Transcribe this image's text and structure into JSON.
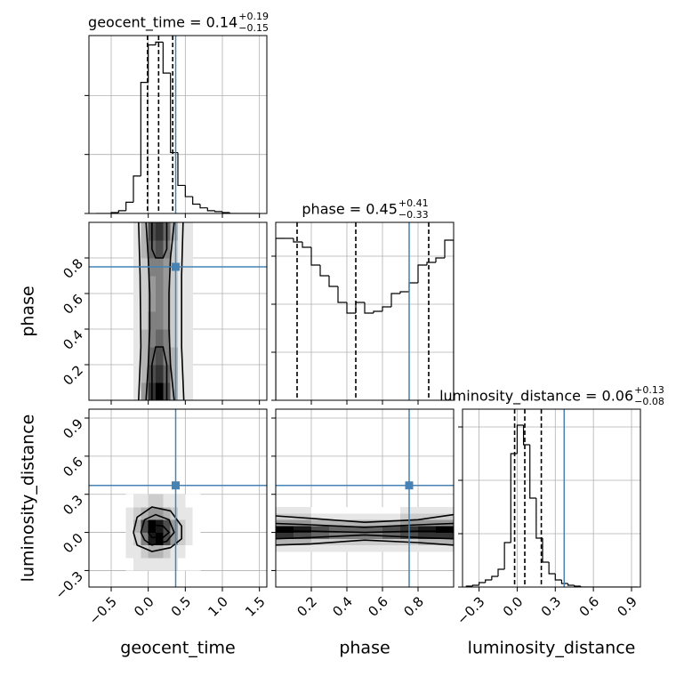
{
  "chart_data": {
    "type": "corner",
    "truth_color": "#4682b4",
    "hist_color": "#000000",
    "grid": true,
    "parameters": [
      {
        "name": "geocent_time",
        "lim": [
          -0.8,
          1.6
        ],
        "ticks": [
          {
            "value": -0.5,
            "label": "−0.5"
          },
          {
            "value": 0,
            "label": "0.0"
          },
          0.5,
          {
            "value": 1,
            "label": "1.0"
          },
          1.5
        ],
        "truth": 0.37,
        "title": {
          "label": "geocent_time = 0.14",
          "upper": "+0.19",
          "lower": "−0.15"
        },
        "quantiles": [
          -0.01,
          0.14,
          0.33
        ],
        "hist": {
          "bins": [
            -0.7,
            -0.6,
            -0.5,
            -0.4,
            -0.3,
            -0.2,
            -0.1,
            0,
            0.1,
            0.2,
            0.3,
            0.4,
            0.5,
            0.6,
            0.7,
            0.8,
            0.9,
            1.0,
            1.1,
            1.2,
            1.3,
            1.4,
            1.5
          ],
          "counts": [
            0,
            0,
            1,
            3,
            12,
            40,
            140,
            180,
            183,
            150,
            65,
            30,
            18,
            10,
            6,
            3,
            2,
            1,
            0,
            0,
            0,
            0
          ],
          "ylim": [
            0,
            190
          ],
          "yticks": [
            0,
            63,
            126
          ]
        }
      },
      {
        "name": "phase",
        "lim": [
          0,
          1
        ],
        "ticks": [
          0.2,
          0.4,
          0.6,
          0.8
        ],
        "truth": 0.75,
        "title": {
          "label": "phase = 0.45",
          "upper": "+0.41",
          "lower": "−0.33"
        },
        "quantiles": [
          0.12,
          0.45,
          0.86
        ],
        "hist": {
          "bins": [
            0,
            0.05,
            0.1,
            0.15,
            0.2,
            0.25,
            0.3,
            0.35,
            0.4,
            0.45,
            0.5,
            0.55,
            0.6,
            0.65,
            0.7,
            0.75,
            0.8,
            0.85,
            0.9,
            0.95,
            1.0
          ],
          "counts": [
            182,
            182,
            178,
            172,
            152,
            140,
            128,
            110,
            98,
            110,
            98,
            100,
            105,
            120,
            122,
            132,
            152,
            155,
            160,
            180
          ],
          "ylim": [
            0,
            200
          ],
          "yticks": [
            0,
            54,
            108,
            162
          ]
        },
        "joint": [
          {
            "x_edges": [
              -0.2,
              -0.1,
              0,
              0.1,
              0.2,
              0.3,
              0.4,
              0.5,
              0.6
            ],
            "y_edges": [
              0,
              0.1,
              0.2,
              0.3,
              0.4,
              0.5,
              0.6,
              0.7,
              0.8,
              0.9,
              1.0
            ],
            "counts": [
              [
                1,
                4,
                8,
                10,
                7,
                3,
                1,
                1
              ],
              [
                1,
                3,
                7,
                8,
                6,
                3,
                1,
                1
              ],
              [
                1,
                3,
                6,
                7,
                5,
                3,
                1,
                1
              ],
              [
                1,
                3,
                5,
                6,
                5,
                2,
                1,
                1
              ],
              [
                1,
                2,
                5,
                5,
                4,
                2,
                1,
                1
              ],
              [
                1,
                2,
                4,
                5,
                4,
                2,
                1,
                1
              ],
              [
                1,
                2,
                4,
                5,
                4,
                2,
                1,
                1
              ],
              [
                1,
                2,
                5,
                5,
                4,
                2,
                1,
                1
              ],
              [
                1,
                3,
                6,
                7,
                5,
                2,
                1,
                1
              ],
              [
                1,
                3,
                7,
                8,
                6,
                3,
                1,
                1
              ]
            ],
            "contours": [
              {
                "x": [
                  -0.13,
                  -0.1,
                  -0.11,
                  -0.13
                ],
                "y": [
                  0,
                  0.3,
                  0.7,
                  1
                ]
              },
              {
                "x": [
                  0.48,
                  0.45,
                  0.45,
                  0.47
                ],
                "y": [
                  0,
                  0.3,
                  0.7,
                  1
                ]
              },
              {
                "x": [
                  -0.03,
                  0,
                  0.02,
                  0.02,
                  0,
                  -0.03
                ],
                "y": [
                  0,
                  0.2,
                  0.4,
                  0.6,
                  0.8,
                  1
                ]
              },
              {
                "x": [
                  0.35,
                  0.3,
                  0.28,
                  0.28,
                  0.3,
                  0.35
                ],
                "y": [
                  0,
                  0.2,
                  0.4,
                  0.6,
                  0.8,
                  1
                ]
              },
              {
                "x": [
                  0.05,
                  0.05,
                  0.1,
                  0.2,
                  0.25,
                  0.25
                ],
                "y": [
                  0,
                  0.2,
                  0.3,
                  0.3,
                  0.2,
                  0
                ]
              },
              {
                "x": [
                  0.05,
                  0.05,
                  0.1,
                  0.2,
                  0.25,
                  0.25
                ],
                "y": [
                  1,
                  0.85,
                  0.8,
                  0.8,
                  0.85,
                  1
                ]
              }
            ]
          }
        ]
      },
      {
        "name": "luminosity_distance",
        "lim": [
          -0.43,
          0.97
        ],
        "ticks": [
          {
            "value": -0.3,
            "label": "−0.3"
          },
          {
            "value": 0,
            "label": "0.0"
          },
          0.3,
          0.6,
          0.9
        ],
        "truth": 0.37,
        "title": {
          "label": "luminosity_distance = 0.06",
          "upper": "+0.13",
          "lower": "−0.08"
        },
        "quantiles": [
          -0.02,
          0.06,
          0.19
        ],
        "hist": {
          "bins": [
            -0.4,
            -0.35,
            -0.3,
            -0.25,
            -0.2,
            -0.15,
            -0.1,
            -0.05,
            0,
            0.05,
            0.1,
            0.15,
            0.2,
            0.25,
            0.3,
            0.35,
            0.4,
            0.45,
            0.5,
            0.55,
            0.6,
            0.65,
            0.7,
            0.75,
            0.8,
            0.85,
            0.9,
            0.95
          ],
          "counts": [
            1,
            2,
            5,
            8,
            12,
            20,
            50,
            150,
            182,
            160,
            100,
            55,
            28,
            15,
            8,
            4,
            2,
            1,
            0,
            0,
            0,
            0,
            0,
            0,
            0,
            0,
            0
          ],
          "ylim": [
            0,
            200
          ],
          "yticks": [
            0,
            60,
            120,
            180
          ]
        },
        "joint": [
          {
            "x_edges": [
              -0.3,
              -0.2,
              -0.1,
              0,
              0.1,
              0.2,
              0.3,
              0.4,
              0.5,
              0.6,
              0.7
            ],
            "y_edges": [
              -0.3,
              -0.2,
              -0.1,
              0,
              0.1,
              0.2,
              0.3
            ],
            "counts": [
              [
                0,
                1,
                1,
                1,
                1,
                1,
                1,
                0,
                0,
                0
              ],
              [
                1,
                1,
                2,
                3,
                3,
                2,
                1,
                1,
                0,
                0
              ],
              [
                1,
                2,
                5,
                9,
                10,
                7,
                4,
                2,
                1,
                0
              ],
              [
                1,
                3,
                7,
                10,
                9,
                7,
                4,
                2,
                1,
                0
              ],
              [
                1,
                2,
                3,
                4,
                4,
                3,
                2,
                1,
                1,
                0
              ],
              [
                0,
                1,
                1,
                2,
                2,
                1,
                1,
                1,
                0,
                0
              ]
            ],
            "contours": [
              {
                "x": [
                  -0.2,
                  -0.15,
                  0.05,
                  0.3,
                  0.45,
                  0.45,
                  0.3,
                  0.05,
                  -0.15,
                  -0.2
                ],
                "y": [
                  0,
                  0.12,
                  0.2,
                  0.17,
                  0.05,
                  -0.05,
                  -0.12,
                  -0.15,
                  -0.1,
                  0
                ]
              },
              {
                "x": [
                  -0.1,
                  -0.05,
                  0.1,
                  0.28,
                  0.35,
                  0.25,
                  0.05,
                  -0.05,
                  -0.1
                ],
                "y": [
                  0,
                  0.1,
                  0.14,
                  0.1,
                  0,
                  -0.07,
                  -0.1,
                  -0.06,
                  0
                ]
              },
              {
                "x": [
                  0,
                  0.05,
                  0.2,
                  0.28,
                  0.2,
                  0.05,
                  0
                ],
                "y": [
                  0,
                  0.06,
                  0.05,
                  0,
                  -0.04,
                  -0.04,
                  0
                ]
              }
            ]
          },
          {
            "x_edges": [
              0,
              0.1,
              0.2,
              0.3,
              0.4,
              0.5,
              0.6,
              0.7,
              0.8,
              0.9,
              1.0
            ],
            "y_edges": [
              -0.15,
              -0.1,
              -0.05,
              0,
              0.05,
              0.1,
              0.15,
              0.2
            ],
            "counts": [
              [
                1,
                1,
                1,
                1,
                1,
                1,
                1,
                1,
                1,
                1
              ],
              [
                3,
                3,
                2,
                2,
                2,
                2,
                2,
                2,
                3,
                3
              ],
              [
                8,
                7,
                6,
                5,
                5,
                5,
                6,
                7,
                8,
                8
              ],
              [
                10,
                9,
                7,
                6,
                6,
                6,
                7,
                8,
                9,
                10
              ],
              [
                4,
                4,
                3,
                3,
                3,
                3,
                3,
                4,
                4,
                4
              ],
              [
                2,
                2,
                1,
                1,
                1,
                1,
                1,
                2,
                2,
                2
              ],
              [
                1,
                1,
                0,
                0,
                0,
                0,
                0,
                1,
                1,
                1
              ]
            ],
            "contours": [
              {
                "x": [
                  0,
                  0.2,
                  0.5,
                  0.8,
                  1
                ],
                "y": [
                  0.13,
                  0.11,
                  0.08,
                  0.1,
                  0.14
                ]
              },
              {
                "x": [
                  0,
                  0.2,
                  0.5,
                  0.8,
                  1
                ],
                "y": [
                  -0.1,
                  -0.09,
                  -0.06,
                  -0.08,
                  -0.1
                ]
              },
              {
                "x": [
                  0,
                  0.2,
                  0.5,
                  0.8,
                  1
                ],
                "y": [
                  0.07,
                  0.06,
                  0.04,
                  0.06,
                  0.07
                ]
              },
              {
                "x": [
                  0,
                  0.2,
                  0.5,
                  0.8,
                  1
                ],
                "y": [
                  -0.05,
                  -0.04,
                  -0.02,
                  -0.04,
                  -0.05
                ]
              },
              {
                "x": [
                  0,
                  0.2,
                  0.5,
                  0.8,
                  1
                ],
                "y": [
                  0.01,
                  0.01,
                  0,
                  0.01,
                  0.01
                ]
              }
            ]
          }
        ]
      }
    ]
  }
}
